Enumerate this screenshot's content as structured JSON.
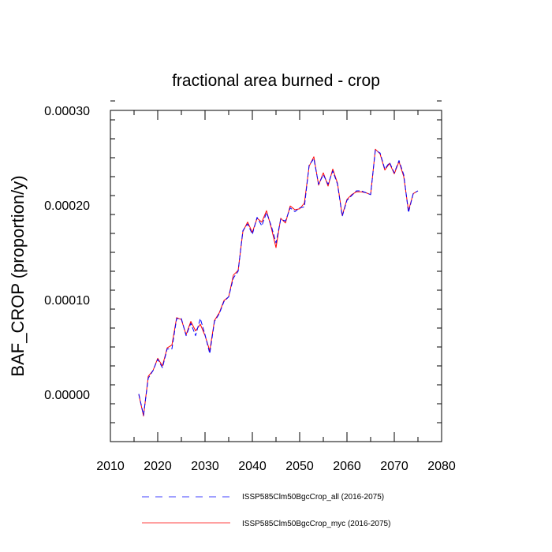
{
  "chart_data": {
    "type": "line",
    "title": "fractional area burned - crop",
    "xlabel": "",
    "ylabel": "BAF_CROP  (proportion/y)",
    "xlim": [
      2010,
      2080
    ],
    "ylim": [
      -5e-05,
      0.0003
    ],
    "x_ticks": [
      "2010",
      "2020",
      "2030",
      "2040",
      "2050",
      "2060",
      "2070",
      "2080"
    ],
    "y_ticks": [
      "0.00000",
      "0.00010",
      "0.00020",
      "0.00030"
    ],
    "x": [
      2016,
      2017,
      2018,
      2019,
      2020,
      2021,
      2022,
      2023,
      2024,
      2025,
      2026,
      2027,
      2028,
      2029,
      2030,
      2031,
      2032,
      2033,
      2034,
      2035,
      2036,
      2037,
      2038,
      2039,
      2040,
      2041,
      2042,
      2043,
      2044,
      2045,
      2046,
      2047,
      2048,
      2049,
      2050,
      2051,
      2052,
      2053,
      2054,
      2055,
      2056,
      2057,
      2058,
      2059,
      2060,
      2061,
      2062,
      2063,
      2064,
      2065,
      2066,
      2067,
      2068,
      2069,
      2070,
      2071,
      2072,
      2073,
      2074,
      2075
    ],
    "series": [
      {
        "name": "ISSP585Clm50BgcCrop_all (2016-2075)",
        "color": "#0000ff",
        "style": "dashed",
        "values": [
          3e-07,
          -2.2e-05,
          1.7e-05,
          2.5e-05,
          3.7e-05,
          2.8e-05,
          4.8e-05,
          4.8e-05,
          8e-05,
          8e-05,
          6.2e-05,
          7.5e-05,
          6.2e-05,
          8e-05,
          6.3e-05,
          4.3e-05,
          7.7e-05,
          8.5e-05,
          9.8e-05,
          0.000103,
          0.000123,
          0.00013,
          0.000173,
          0.00018,
          0.000169,
          0.000187,
          0.000178,
          0.000192,
          0.000178,
          0.00016,
          0.000185,
          0.000183,
          0.000197,
          0.000193,
          0.000197,
          0.000198,
          0.000242,
          0.000249,
          0.000222,
          0.000232,
          0.000222,
          0.000236,
          0.000222,
          0.000188,
          0.000205,
          0.00021,
          0.000215,
          0.000215,
          0.000213,
          0.000211,
          0.000258,
          0.000255,
          0.000238,
          0.000245,
          0.000234,
          0.000247,
          0.000232,
          0.000192,
          0.000212,
          0.000215
        ]
      },
      {
        "name": "ISSP585Clm50BgcCrop_myc (2016-2075)",
        "color": "#ff0000",
        "style": "solid",
        "values": [
          -2e-07,
          -2.3e-05,
          1.9e-05,
          2.5e-05,
          3.8e-05,
          3e-05,
          4.9e-05,
          5.2e-05,
          8.1e-05,
          7.9e-05,
          6.3e-05,
          7.7e-05,
          6.7e-05,
          7.4e-05,
          6.2e-05,
          4.6e-05,
          7.8e-05,
          8.6e-05,
          9.9e-05,
          0.000103,
          0.000126,
          0.000131,
          0.000172,
          0.000182,
          0.000171,
          0.000186,
          0.000182,
          0.000194,
          0.000176,
          0.000155,
          0.000186,
          0.000181,
          0.000199,
          0.000195,
          0.000196,
          0.000202,
          0.000241,
          0.000251,
          0.000221,
          0.000234,
          0.00022,
          0.000238,
          0.000223,
          0.000189,
          0.000206,
          0.000211,
          0.000214,
          0.000214,
          0.000213,
          0.000211,
          0.000259,
          0.000254,
          0.000237,
          0.000244,
          0.000233,
          0.000246,
          0.00023,
          0.000194,
          0.000212,
          0.000215
        ]
      }
    ],
    "grid": false,
    "legend_position": "bottom"
  }
}
